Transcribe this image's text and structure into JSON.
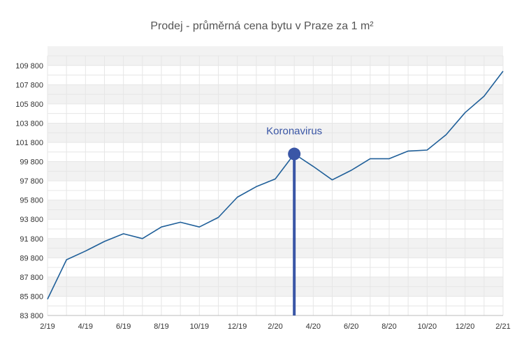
{
  "chart_data": {
    "type": "line",
    "title": "Prodej - průměrná cena bytu v Praze za 1 m²",
    "xlabel": "",
    "ylabel": "",
    "x_tick_labels": [
      "2/19",
      "4/19",
      "6/19",
      "8/19",
      "10/19",
      "12/19",
      "2/20",
      "4/20",
      "6/20",
      "8/20",
      "10/20",
      "12/20",
      "2/21"
    ],
    "y_tick_labels": [
      "83 800",
      "85 800",
      "87 800",
      "89 800",
      "91 800",
      "93 800",
      "95 800",
      "97 800",
      "99 800",
      "101 800",
      "103 800",
      "105 800",
      "107 800",
      "109 800"
    ],
    "ylim": [
      83800,
      110800
    ],
    "grid": true,
    "x": [
      "2/19",
      "3/19",
      "4/19",
      "5/19",
      "6/19",
      "7/19",
      "8/19",
      "9/19",
      "10/19",
      "11/19",
      "12/19",
      "1/20",
      "2/20",
      "3/20",
      "4/20",
      "5/20",
      "6/20",
      "7/20",
      "8/20",
      "9/20",
      "10/20",
      "11/20",
      "12/20",
      "1/21",
      "2/21"
    ],
    "series": [
      {
        "values": [
          85500,
          89600,
          90500,
          91500,
          92300,
          91800,
          93000,
          93500,
          93000,
          94000,
          96100,
          97200,
          98000,
          100600,
          99300,
          97900,
          98900,
          100100,
          100100,
          100900,
          101000,
          102600,
          104900,
          106600,
          109200
        ]
      }
    ],
    "annotation": {
      "label": "Koronavirus",
      "x": "3/20",
      "y": 100600
    },
    "colors": {
      "line": "#1f5f99",
      "annotation": "#3a56a6",
      "band": "#f2f2f2",
      "grid": "#e6e6e6"
    }
  }
}
